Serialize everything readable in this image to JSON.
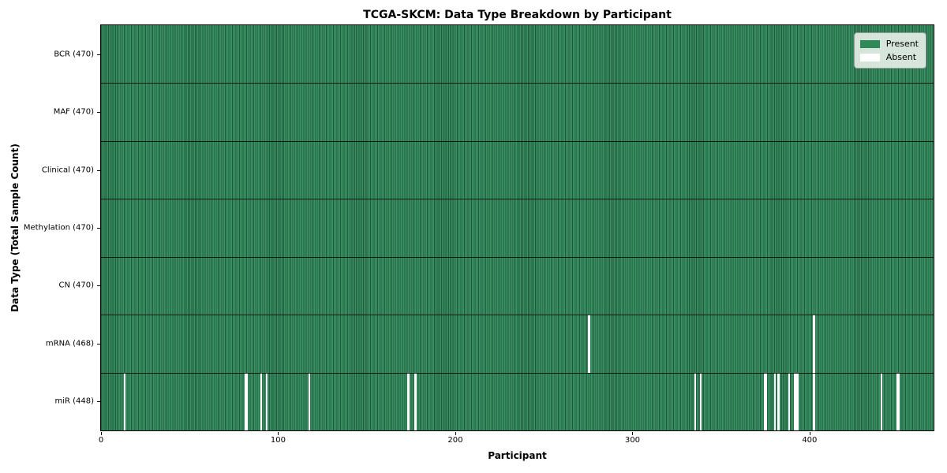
{
  "chart_data": {
    "type": "heatmap",
    "title": "TCGA-SKCM: Data Type Breakdown by Participant",
    "xlabel": "Participant",
    "ylabel": "Data Type (Total Sample Count)",
    "x_ticks": [
      0,
      100,
      200,
      300,
      400
    ],
    "x_range": [
      0,
      470
    ],
    "n_participants": 470,
    "grid": false,
    "legend_position": "upper right",
    "legend": [
      {
        "label": "Present",
        "color": "#2e8b57"
      },
      {
        "label": "Absent",
        "color": "#ffffff"
      }
    ],
    "colors": {
      "present_fill": "#3b9164",
      "cell_edge": "#1e5c3c",
      "absent_fill": "#ffffff"
    },
    "rows": [
      {
        "label": "BCR (470)",
        "data_type": "BCR",
        "total_samples": 470,
        "absent_participants": []
      },
      {
        "label": "MAF (470)",
        "data_type": "MAF",
        "total_samples": 470,
        "absent_participants": []
      },
      {
        "label": "Clinical (470)",
        "data_type": "Clinical",
        "total_samples": 470,
        "absent_participants": []
      },
      {
        "label": "Methylation (470)",
        "data_type": "Methylation",
        "total_samples": 470,
        "absent_participants": []
      },
      {
        "label": "CN (470)",
        "data_type": "CN",
        "total_samples": 470,
        "absent_participants": []
      },
      {
        "label": "mRNA (468)",
        "data_type": "mRNA",
        "total_samples": 468,
        "absent_participants": [
          275,
          402
        ]
      },
      {
        "label": "miR (448)",
        "data_type": "miR",
        "total_samples": 448,
        "absent_participants": [
          13,
          81,
          82,
          90,
          93,
          117,
          173,
          177,
          335,
          338,
          374,
          375,
          380,
          382,
          388,
          391,
          392,
          393,
          402,
          440,
          449,
          450
        ]
      }
    ]
  }
}
